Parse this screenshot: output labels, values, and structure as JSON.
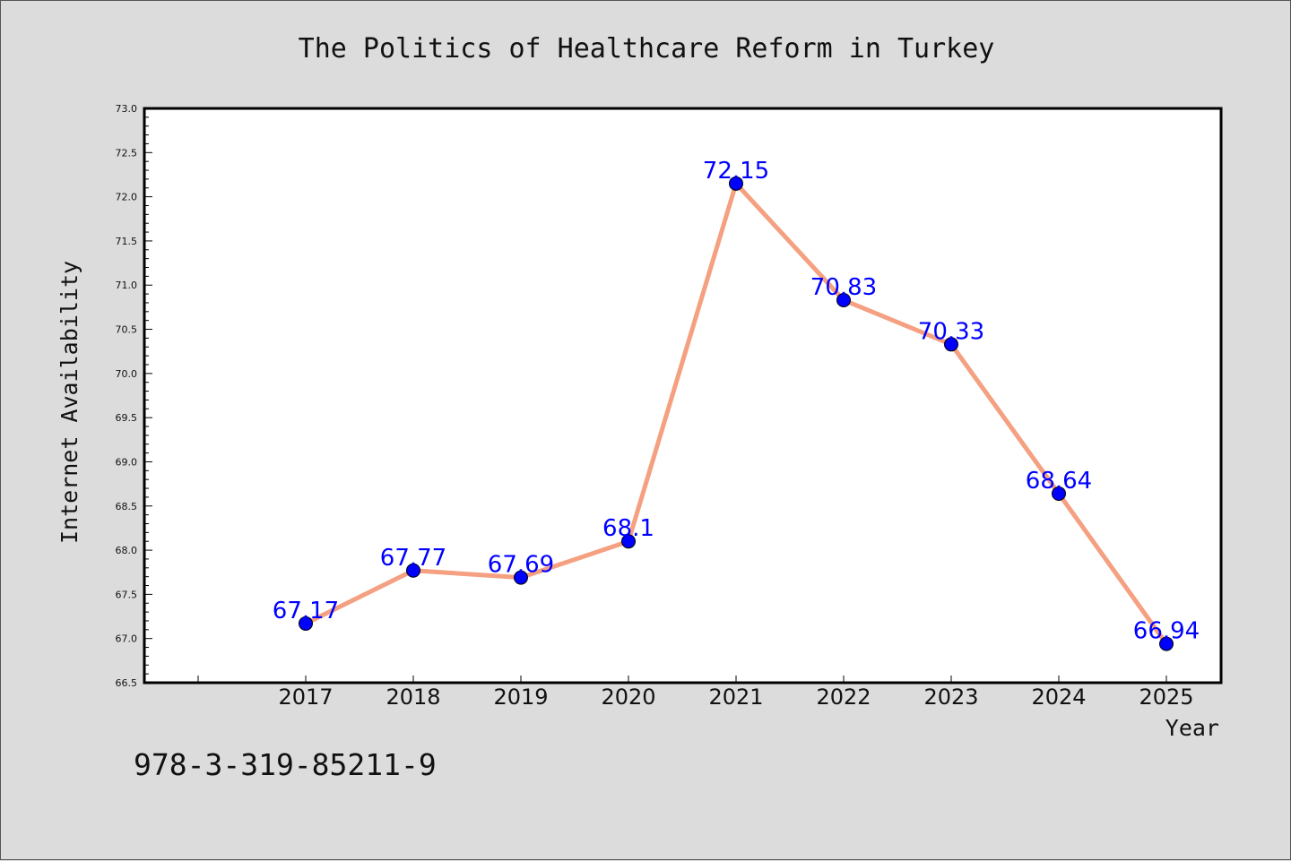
{
  "chart_data": {
    "type": "line",
    "title": "The Politics of Healthcare Reform in Turkey",
    "xlabel": "Year",
    "ylabel": "Internet Availability",
    "categories": [
      "2017",
      "2018",
      "2019",
      "2020",
      "2021",
      "2022",
      "2023",
      "2024",
      "2025"
    ],
    "values": [
      67.17,
      67.77,
      67.69,
      68.1,
      72.15,
      70.83,
      70.33,
      68.64,
      66.94
    ],
    "data_labels": [
      "67.17",
      "67.77",
      "67.69",
      "68.1",
      "72.15",
      "70.83",
      "70.33",
      "68.64",
      "66.94"
    ],
    "ylim": [
      66.5,
      73.0
    ],
    "yticks": [
      "66.5",
      "67.0",
      "67.5",
      "68.0",
      "68.5",
      "69.0",
      "69.5",
      "70.0",
      "70.5",
      "71.0",
      "71.5",
      "72.0",
      "72.5",
      "73.0"
    ],
    "grid": false,
    "legend": "none",
    "colors": {
      "line": "#f4a081",
      "marker": "#0000ff",
      "label": "#0000ff",
      "background": "#dcdcdc",
      "plot_background": "#ffffff"
    }
  },
  "footer": {
    "isbn": "978-3-319-85211-9"
  }
}
